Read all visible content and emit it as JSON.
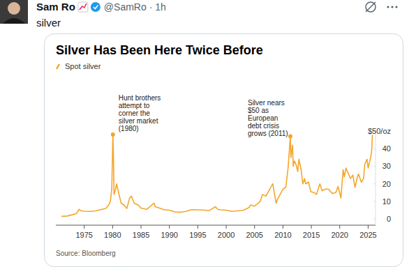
{
  "post": {
    "author": "Sam Ro",
    "handle": "@SamRo · 1h",
    "text": "silver"
  },
  "chart_data": {
    "type": "line",
    "title": "Silver Has Been Here Twice Before",
    "source": "Source: Bloomberg",
    "legend": "top-left",
    "grid": false,
    "xlim": [
      1970,
      2026.3
    ],
    "xticks": [
      1975,
      1980,
      1985,
      1990,
      1995,
      2000,
      2005,
      2010,
      2015,
      2020,
      2025
    ],
    "ylim": [
      -3.5,
      52
    ],
    "yticks": [
      0,
      10,
      20,
      30,
      40,
      {
        "value": 50,
        "label": "$50/oz"
      }
    ],
    "annotations": [
      {
        "text": [
          "Hunt brothers",
          "attempt to",
          "corner the",
          "silver market",
          "(1980)"
        ],
        "x": 1980.05,
        "y": 48
      },
      {
        "text": [
          "Silver nears",
          "$50 as",
          "European",
          "debt crisis",
          "grows (2011)"
        ],
        "x": 2011.3,
        "y": 47
      }
    ],
    "x": [
      1971,
      1972,
      1973,
      1973.6,
      1974.1,
      1974.5,
      1975,
      1976,
      1977,
      1978,
      1978.8,
      1979.3,
      1979.6,
      1979.85,
      1980.05,
      1980.15,
      1980.25,
      1980.45,
      1980.7,
      1980.9,
      1981.5,
      1982,
      1982.5,
      1983,
      1983.3,
      1983.8,
      1984.5,
      1985,
      1986,
      1987.3,
      1987.5,
      1988,
      1989,
      1990,
      1991,
      1992,
      1993,
      1993.5,
      1994,
      1995,
      1996,
      1997,
      1998.1,
      1998.5,
      1999,
      2000,
      2001,
      2002,
      2003,
      2004,
      2004.3,
      2005,
      2006,
      2006.4,
      2007,
      2008.2,
      2008.8,
      2009,
      2009.5,
      2010,
      2010.5,
      2010.9,
      2011.3,
      2011.4,
      2011.7,
      2011.8,
      2012,
      2012.3,
      2012.6,
      2012.8,
      2013.2,
      2013.5,
      2013.8,
      2014,
      2014.5,
      2014.9,
      2015.5,
      2015.9,
      2016.5,
      2016.9,
      2017.5,
      2018,
      2018.7,
      2019.3,
      2019.7,
      2020.2,
      2020.6,
      2020.8,
      2021.1,
      2021.5,
      2021.9,
      2022.3,
      2022.7,
      2023.1,
      2023.3,
      2023.8,
      2024.2,
      2024.4,
      2024.8,
      2025,
      2025.3,
      2025.5,
      2025.65,
      2025.75
    ],
    "series": [
      {
        "name": "Spot silver",
        "color": "#f4a62a",
        "values": [
          1.5,
          1.7,
          2.5,
          3.0,
          5.5,
          4.6,
          4.4,
          4.3,
          4.6,
          5.4,
          6,
          8,
          10,
          17,
          48,
          35,
          14,
          16,
          20,
          17,
          9,
          8,
          6,
          12,
          13,
          9,
          8,
          6.2,
          5.5,
          9,
          7,
          6.5,
          5.3,
          5,
          4,
          3.9,
          4.3,
          5,
          5.3,
          5.2,
          5.1,
          4.8,
          7,
          5.5,
          5.2,
          5,
          4.3,
          4.6,
          4.9,
          6.5,
          8,
          7.3,
          10,
          14,
          13,
          20,
          9,
          11,
          14,
          17,
          18,
          29,
          47,
          35,
          42,
          30,
          33,
          31,
          27,
          34,
          28,
          20,
          23,
          20,
          21,
          15.5,
          15,
          14,
          20,
          16,
          17,
          17,
          14.5,
          15,
          18.5,
          12,
          28,
          24,
          29,
          26,
          23,
          25,
          18,
          24,
          25.5,
          21,
          23,
          31,
          34,
          29,
          33,
          36,
          40,
          48
        ]
      }
    ]
  }
}
